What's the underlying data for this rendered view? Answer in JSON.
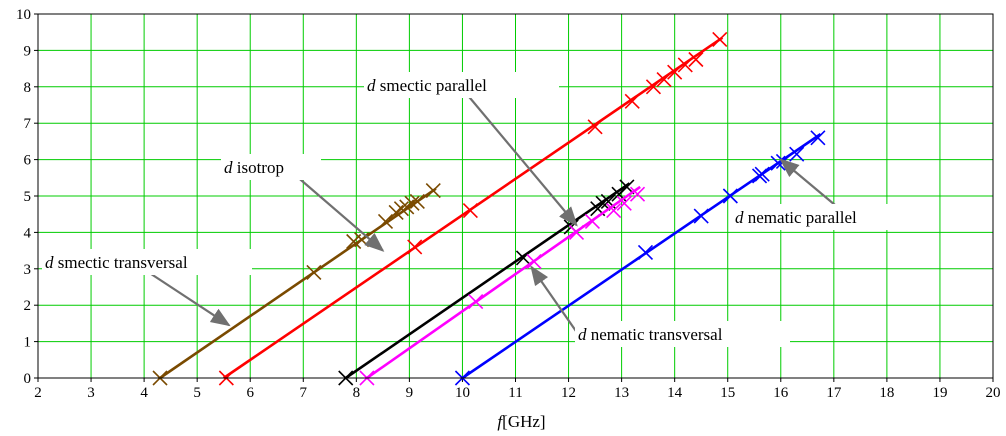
{
  "chart_data": {
    "type": "line",
    "title": "",
    "xlabel_var": "f",
    "xlabel_unit": "[GHz]",
    "ylabel": "",
    "xlim": [
      2,
      20
    ],
    "ylim": [
      0,
      10
    ],
    "x_ticks": [
      2,
      3,
      4,
      5,
      6,
      7,
      8,
      9,
      10,
      11,
      12,
      13,
      14,
      15,
      16,
      17,
      18,
      19,
      20
    ],
    "y_ticks": [
      0,
      1,
      2,
      3,
      4,
      5,
      6,
      7,
      8,
      9,
      10
    ],
    "grid": true,
    "grid_color": "#00cc00",
    "series": [
      {
        "key": "smectic-transversal",
        "color": "#7a4a00",
        "line": [
          [
            4.3,
            0
          ],
          [
            9.5,
            5.2
          ]
        ],
        "markers": [
          [
            4.3,
            0
          ],
          [
            7.2,
            2.9
          ],
          [
            7.95,
            3.75
          ],
          [
            8.1,
            3.8
          ],
          [
            8.55,
            4.3
          ],
          [
            8.75,
            4.55
          ],
          [
            8.85,
            4.65
          ],
          [
            8.95,
            4.7
          ],
          [
            9.05,
            4.8
          ],
          [
            9.15,
            4.85
          ],
          [
            9.45,
            5.15
          ]
        ]
      },
      {
        "key": "isotrop",
        "color": "#ff0000",
        "line": [
          [
            5.5,
            0
          ],
          [
            14.9,
            9.35
          ]
        ],
        "markers": [
          [
            5.55,
            0
          ],
          [
            9.1,
            3.6
          ],
          [
            10.15,
            4.6
          ],
          [
            12.5,
            6.9
          ],
          [
            13.2,
            7.6
          ],
          [
            13.6,
            8.0
          ],
          [
            13.8,
            8.2
          ],
          [
            14.0,
            8.4
          ],
          [
            14.2,
            8.6
          ],
          [
            14.4,
            8.75
          ],
          [
            14.85,
            9.3
          ]
        ]
      },
      {
        "key": "smectic-parallel",
        "color": "#000000",
        "line": [
          [
            7.8,
            0
          ],
          [
            13.15,
            5.35
          ]
        ],
        "markers": [
          [
            7.8,
            0
          ],
          [
            11.15,
            3.3
          ],
          [
            12.05,
            4.15
          ],
          [
            12.55,
            4.65
          ],
          [
            12.65,
            4.8
          ],
          [
            12.75,
            4.85
          ],
          [
            12.95,
            5.05
          ],
          [
            13.1,
            5.25
          ]
        ]
      },
      {
        "key": "nematic-transversal",
        "color": "#ff00ff",
        "line": [
          [
            8.2,
            0
          ],
          [
            13.35,
            5.25
          ]
        ],
        "markers": [
          [
            8.2,
            0
          ],
          [
            10.25,
            2.1
          ],
          [
            11.35,
            3.2
          ],
          [
            12.15,
            4.0
          ],
          [
            12.45,
            4.3
          ],
          [
            12.85,
            4.6
          ],
          [
            13.05,
            4.8
          ],
          [
            13.3,
            5.05
          ]
        ]
      },
      {
        "key": "nematic-parallel",
        "color": "#0000ff",
        "line": [
          [
            10.0,
            0
          ],
          [
            16.75,
            6.7
          ]
        ],
        "markers": [
          [
            10.0,
            0
          ],
          [
            13.45,
            3.45
          ],
          [
            14.5,
            4.45
          ],
          [
            15.05,
            5.0
          ],
          [
            15.6,
            5.55
          ],
          [
            15.65,
            5.6
          ],
          [
            15.95,
            5.9
          ],
          [
            16.05,
            5.95
          ],
          [
            16.3,
            6.15
          ],
          [
            16.7,
            6.6
          ]
        ]
      }
    ],
    "annotations": [
      {
        "key": "smectic-parallel",
        "var": "d",
        "text": " smectic parallel",
        "arrow_to": [
          12.15,
          4.2
        ]
      },
      {
        "key": "isotrop",
        "var": "d",
        "text": " isotrop",
        "arrow_to": [
          8.5,
          3.5
        ]
      },
      {
        "key": "smectic-transversal",
        "var": "d",
        "text": " smectic transversal",
        "arrow_to": [
          5.6,
          1.45
        ]
      },
      {
        "key": "nematic-parallel",
        "var": "d",
        "text": " nematic parallel",
        "arrow_to": [
          16.0,
          6.0
        ]
      },
      {
        "key": "nematic-transversal",
        "var": "d",
        "text": " nematic transversal",
        "arrow_to": [
          11.3,
          3.05
        ]
      }
    ]
  }
}
